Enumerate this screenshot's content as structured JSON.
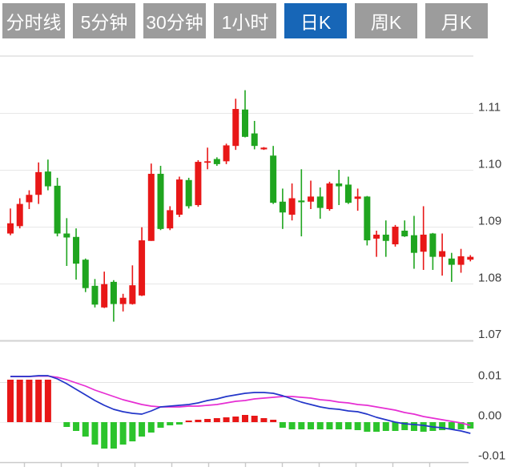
{
  "tabs": {
    "items": [
      {
        "label": "分时线",
        "active": false
      },
      {
        "label": "5分钟",
        "active": false
      },
      {
        "label": "30分钟",
        "active": false
      },
      {
        "label": "1小时",
        "active": false
      },
      {
        "label": "日K",
        "active": true
      },
      {
        "label": "周K",
        "active": false
      },
      {
        "label": "月K",
        "active": false
      }
    ]
  },
  "colors": {
    "up": "#e81717",
    "down": "#1fa51f",
    "macd_up": "#e81717",
    "macd_down": "#2cc42c",
    "dif_line": "#2336c9",
    "dea_line": "#e62ed3",
    "tab_bg": "#9c9c9c",
    "tab_active_bg": "#1766b7",
    "tab_text": "#ffffff",
    "axis_text": "#3d3d3d",
    "gridline": "#e7e7e7",
    "panel_border": "#d2d2d2"
  },
  "chart_data": {
    "type": "candlestick",
    "title": "",
    "period_selected": "日K",
    "price_axis": {
      "tick_labels": [
        "1.11",
        "1.10",
        "1.09",
        "1.08",
        "1.07"
      ],
      "tick_values": [
        1.11,
        1.1,
        1.09,
        1.08,
        1.07
      ],
      "ylim": [
        1.07,
        1.12
      ]
    },
    "candles": [
      [
        1.0888,
        1.0932,
        1.0885,
        1.0906
      ],
      [
        1.0901,
        1.095,
        1.0897,
        1.094
      ],
      [
        1.0943,
        1.0964,
        1.0931,
        1.0956
      ],
      [
        1.0956,
        1.1013,
        1.094,
        1.0996
      ],
      [
        1.0997,
        1.1018,
        1.0964,
        1.0971
      ],
      [
        1.0972,
        1.0986,
        1.0883,
        1.0888
      ],
      [
        1.0888,
        1.0915,
        1.0831,
        1.0881
      ],
      [
        1.0882,
        1.0897,
        1.0807,
        1.0835
      ],
      [
        1.0842,
        1.0844,
        1.0785,
        1.0792
      ],
      [
        1.0796,
        1.0808,
        1.0758,
        1.0763
      ],
      [
        1.0758,
        1.0821,
        1.0757,
        1.0799
      ],
      [
        1.0803,
        1.0806,
        1.0733,
        1.0764
      ],
      [
        1.0764,
        1.0782,
        1.0751,
        1.0775
      ],
      [
        1.0764,
        1.0832,
        1.0763,
        1.0797
      ],
      [
        1.0779,
        1.0899,
        1.0778,
        1.0876
      ],
      [
        1.0875,
        1.1011,
        1.0875,
        1.0993
      ],
      [
        1.0993,
        1.1007,
        1.0894,
        1.0896
      ],
      [
        1.0897,
        1.0936,
        1.0894,
        1.0929
      ],
      [
        1.0921,
        1.0988,
        1.0917,
        1.0983
      ],
      [
        1.0982,
        1.0986,
        1.0932,
        1.0936
      ],
      [
        1.0938,
        1.1017,
        1.0935,
        1.1014
      ],
      [
        1.1013,
        1.1039,
        1.1001,
        1.1015
      ],
      [
        1.1019,
        1.1022,
        1.1007,
        1.101
      ],
      [
        1.1015,
        1.1046,
        1.101,
        1.1043
      ],
      [
        1.1042,
        1.1125,
        1.1035,
        1.1107
      ],
      [
        1.1106,
        1.114,
        1.1057,
        1.1058
      ],
      [
        1.1064,
        1.1086,
        1.1036,
        1.1042
      ],
      [
        1.1036,
        1.104,
        1.1035,
        1.1039
      ],
      [
        1.1025,
        1.1042,
        1.094,
        1.0942
      ],
      [
        1.0944,
        1.0967,
        1.0896,
        1.0925
      ],
      [
        1.0921,
        1.0976,
        1.0911,
        1.095
      ],
      [
        1.0946,
        1.1001,
        1.0883,
        1.0943
      ],
      [
        1.0944,
        1.0981,
        1.0931,
        1.0953
      ],
      [
        1.0953,
        1.0969,
        1.0914,
        1.0933
      ],
      [
        1.0931,
        1.0979,
        1.0928,
        1.0976
      ],
      [
        1.0976,
        1.1,
        1.0938,
        1.0971
      ],
      [
        1.0974,
        1.0988,
        1.094,
        1.0942
      ],
      [
        1.0949,
        1.0967,
        1.0928,
        1.0953
      ],
      [
        1.0953,
        1.0954,
        1.0867,
        1.0876
      ],
      [
        1.0879,
        1.0893,
        1.0847,
        1.0886
      ],
      [
        1.0886,
        1.0911,
        1.0847,
        1.0875
      ],
      [
        1.0869,
        1.0903,
        1.0865,
        1.09
      ],
      [
        1.0893,
        1.0911,
        1.0882,
        1.0883
      ],
      [
        1.0885,
        1.0919,
        1.0826,
        1.0854
      ],
      [
        1.0856,
        1.0936,
        1.0824,
        1.0886
      ],
      [
        1.0888,
        1.0889,
        1.0824,
        1.0847
      ],
      [
        1.0847,
        1.0888,
        1.0814,
        1.0857
      ],
      [
        1.0844,
        1.0854,
        1.0803,
        1.0833
      ],
      [
        1.0833,
        1.0861,
        1.0819,
        1.0848
      ],
      [
        1.0842,
        1.085,
        1.0839,
        1.0847
      ]
    ],
    "macd": {
      "axis_tick_labels": [
        "0.01",
        "0.00",
        "-0.01"
      ],
      "axis_tick_values": [
        0.01,
        0.0,
        -0.01
      ],
      "hist": [
        0.0106,
        0.0106,
        0.0106,
        0.0106,
        0.0106,
        0.0,
        -0.0012,
        -0.0022,
        -0.0036,
        -0.0056,
        -0.0066,
        -0.0066,
        -0.0056,
        -0.0048,
        -0.0036,
        -0.0026,
        -0.0014,
        -0.0008,
        -0.0006,
        0.0004,
        0.0006,
        0.0008,
        0.001,
        0.0012,
        0.0014,
        0.0018,
        0.0016,
        0.001,
        0.0006,
        -0.0014,
        -0.0018,
        -0.0018,
        -0.0018,
        -0.0018,
        -0.0018,
        -0.0018,
        -0.0018,
        -0.002,
        -0.0024,
        -0.0024,
        -0.0022,
        -0.0022,
        -0.002,
        -0.0022,
        -0.0024,
        -0.0022,
        -0.002,
        -0.0018,
        -0.0018,
        -0.0016
      ],
      "dif": [
        0.0114,
        0.0114,
        0.0114,
        0.0116,
        0.0116,
        0.0108,
        0.0096,
        0.0082,
        0.0068,
        0.0054,
        0.0042,
        0.0032,
        0.0026,
        0.0022,
        0.002,
        0.0028,
        0.0038,
        0.004,
        0.0042,
        0.0044,
        0.0048,
        0.0054,
        0.0058,
        0.0064,
        0.0068,
        0.0072,
        0.0074,
        0.0074,
        0.0072,
        0.0066,
        0.0058,
        0.005,
        0.0044,
        0.0038,
        0.0034,
        0.0032,
        0.0028,
        0.0026,
        0.002,
        0.0012,
        0.0006,
        0.0,
        -0.0004,
        -0.0006,
        -0.0008,
        -0.0012,
        -0.0014,
        -0.0018,
        -0.0022,
        -0.0028
      ],
      "dea": [
        0.0114,
        0.0114,
        0.0114,
        0.0115,
        0.0115,
        0.0112,
        0.0106,
        0.0098,
        0.009,
        0.008,
        0.0072,
        0.0064,
        0.0056,
        0.005,
        0.0044,
        0.004,
        0.0038,
        0.0038,
        0.0038,
        0.004,
        0.004,
        0.0042,
        0.0044,
        0.0048,
        0.0052,
        0.0054,
        0.0058,
        0.006,
        0.0062,
        0.0064,
        0.0064,
        0.0062,
        0.006,
        0.0056,
        0.0054,
        0.005,
        0.0048,
        0.0044,
        0.0042,
        0.0038,
        0.0034,
        0.003,
        0.0024,
        0.002,
        0.0014,
        0.001,
        0.0006,
        0.0002,
        -0.0002,
        -0.0008
      ]
    }
  }
}
